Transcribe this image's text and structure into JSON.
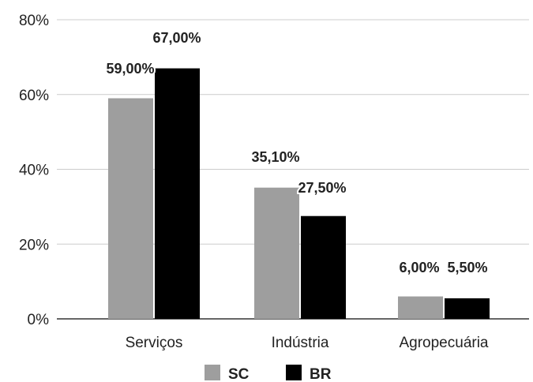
{
  "chart_data": {
    "type": "bar",
    "categories": [
      "Serviços",
      "Indústria",
      "Agropecuária"
    ],
    "series": [
      {
        "name": "SC",
        "values": [
          59.0,
          35.1,
          6.0
        ],
        "labels": [
          "59,00%",
          "35,10%",
          "6,00%"
        ],
        "color": "#9e9e9e"
      },
      {
        "name": "BR",
        "values": [
          67.0,
          27.5,
          5.5
        ],
        "labels": [
          "67,00%",
          "27,50%",
          "5,50%"
        ],
        "color": "#000000"
      }
    ],
    "ylim": [
      0,
      80
    ],
    "yticks": [
      0,
      20,
      40,
      60,
      80
    ],
    "ytick_labels": [
      "0%",
      "20%",
      "40%",
      "60%",
      "80%"
    ],
    "grid": true,
    "legend_position": "bottom",
    "title": "",
    "xlabel": "",
    "ylabel": ""
  }
}
